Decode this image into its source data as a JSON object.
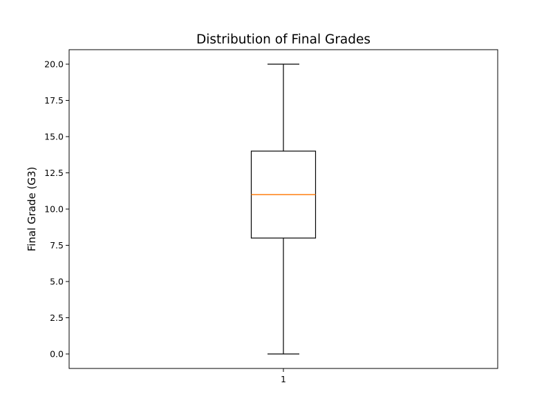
{
  "chart_data": {
    "type": "boxplot",
    "title": "Distribution of Final Grades",
    "xlabel": "",
    "ylabel": "Final Grade (G3)",
    "categories": [
      "1"
    ],
    "boxes": [
      {
        "category": "1",
        "whisker_low": 0,
        "q1": 8,
        "median": 11,
        "q3": 14,
        "whisker_high": 20
      }
    ],
    "ylim": [
      -1,
      21
    ],
    "yticks": [
      0.0,
      2.5,
      5.0,
      7.5,
      10.0,
      12.5,
      15.0,
      17.5,
      20.0
    ],
    "ytick_labels": [
      "0.0",
      "2.5",
      "5.0",
      "7.5",
      "10.0",
      "12.5",
      "15.0",
      "17.5",
      "20.0"
    ],
    "grid": false,
    "colors": {
      "box": "#000000",
      "median": "#ff7f0e",
      "whisker": "#000000"
    }
  }
}
